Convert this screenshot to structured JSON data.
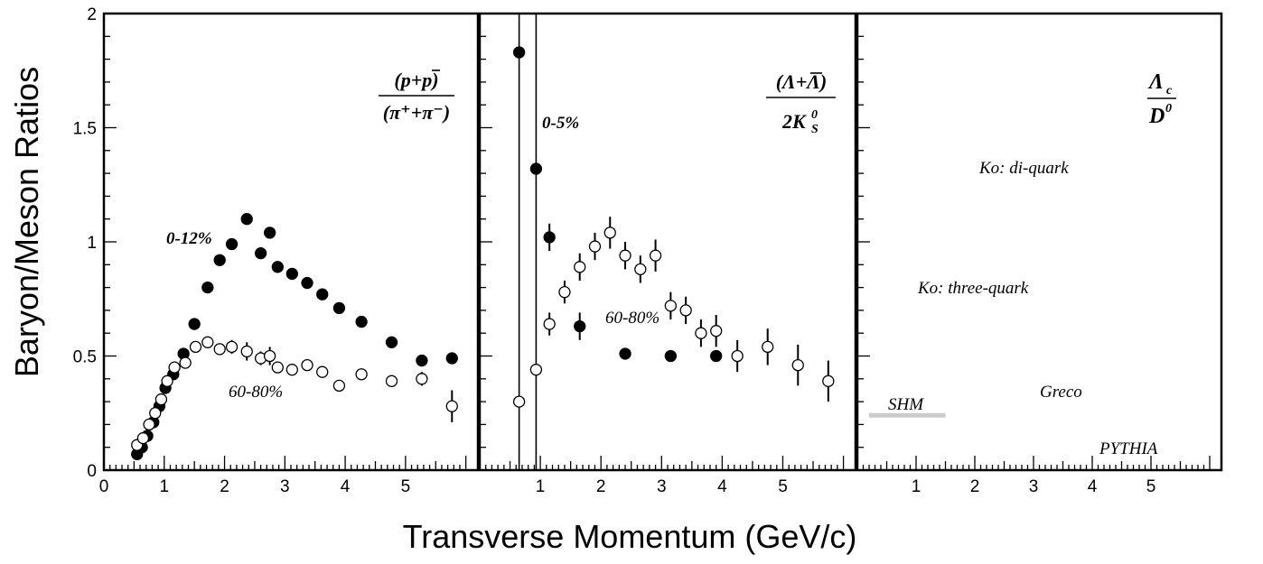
{
  "chart_data": {
    "type": "scatter",
    "ylabel": "Baryon/Meson Ratios",
    "xlabel": "Transverse Momentum (GeV/c)",
    "ylim": [
      0,
      2
    ],
    "y_ticks": [
      "0",
      "0.5",
      "1",
      "1.5",
      "2"
    ],
    "grid": false,
    "panels": [
      {
        "id": "p-over-pi",
        "xlim": [
          0,
          6.2
        ],
        "x_ticks": [
          "0",
          "1",
          "2",
          "3",
          "4",
          "5"
        ],
        "tick_values": [
          0,
          1,
          2,
          3,
          4,
          5
        ],
        "ratio_label": {
          "num": "(p+p)",
          "den": "(π⁺+π⁻)"
        },
        "annotations": [
          "0-12%",
          "60-80%"
        ],
        "series": [
          {
            "centrality": "0-12%",
            "marker": "filled-circle",
            "points": [
              [
                0.55,
                0.07
              ],
              [
                0.63,
                0.1
              ],
              [
                0.72,
                0.15
              ],
              [
                0.82,
                0.21
              ],
              [
                0.92,
                0.28
              ],
              [
                1.02,
                0.36
              ],
              [
                1.15,
                0.42
              ],
              [
                1.32,
                0.51
              ],
              [
                1.5,
                0.64
              ],
              [
                1.72,
                0.8
              ],
              [
                1.92,
                0.92
              ],
              [
                2.12,
                0.99
              ],
              [
                2.37,
                1.1
              ],
              [
                2.6,
                0.95
              ],
              [
                2.75,
                1.04
              ],
              [
                2.88,
                0.89
              ],
              [
                3.12,
                0.86
              ],
              [
                3.37,
                0.82
              ],
              [
                3.62,
                0.77
              ],
              [
                3.9,
                0.71
              ],
              [
                4.27,
                0.65
              ],
              [
                4.77,
                0.56
              ],
              [
                5.27,
                0.48
              ],
              [
                5.77,
                0.49
              ]
            ],
            "err": [
              0,
              0,
              0,
              0,
              0,
              0,
              0,
              0,
              0,
              0,
              0,
              0,
              0,
              0,
              0,
              0,
              0,
              0,
              0,
              0,
              0,
              0,
              0,
              0
            ]
          },
          {
            "centrality": "60-80%",
            "marker": "open-circle",
            "points": [
              [
                0.55,
                0.11
              ],
              [
                0.65,
                0.14
              ],
              [
                0.75,
                0.2
              ],
              [
                0.85,
                0.25
              ],
              [
                0.95,
                0.31
              ],
              [
                1.05,
                0.39
              ],
              [
                1.17,
                0.45
              ],
              [
                1.35,
                0.47
              ],
              [
                1.52,
                0.54
              ],
              [
                1.72,
                0.56
              ],
              [
                1.92,
                0.53
              ],
              [
                2.12,
                0.54
              ],
              [
                2.37,
                0.52
              ],
              [
                2.6,
                0.49
              ],
              [
                2.75,
                0.5
              ],
              [
                2.88,
                0.45
              ],
              [
                3.12,
                0.44
              ],
              [
                3.37,
                0.46
              ],
              [
                3.62,
                0.43
              ],
              [
                3.9,
                0.37
              ],
              [
                4.27,
                0.42
              ],
              [
                4.77,
                0.39
              ],
              [
                5.27,
                0.4
              ],
              [
                5.77,
                0.28
              ]
            ],
            "err": [
              0,
              0,
              0,
              0,
              0,
              0,
              0,
              0,
              0,
              0,
              0,
              0.03,
              0.04,
              0.03,
              0.04,
              0,
              0,
              0,
              0,
              0,
              0,
              0,
              0.03,
              0.07
            ]
          }
        ]
      },
      {
        "id": "lambda-over-k0s",
        "xlim": [
          0,
          6.2
        ],
        "x_ticks": [
          "1",
          "2",
          "3",
          "4",
          "5"
        ],
        "tick_values": [
          1,
          2,
          3,
          4,
          5
        ],
        "ratio_label": {
          "num": "(Λ+Λ)",
          "den": "2K"
        },
        "annotations": [
          "0-5%",
          "60-80%"
        ],
        "vertical_lines": [
          0.65,
          0.93
        ],
        "series": [
          {
            "centrality": "0-5%",
            "marker": "filled-circle",
            "points": [
              [
                0.65,
                1.83
              ],
              [
                0.93,
                1.32
              ],
              [
                1.15,
                1.02
              ],
              [
                1.65,
                0.63
              ],
              [
                2.4,
                0.51
              ],
              [
                3.15,
                0.5
              ],
              [
                3.9,
                0.5
              ]
            ],
            "err": [
              0,
              0,
              0.06,
              0.06,
              0,
              0,
              0
            ]
          },
          {
            "centrality": "60-80%",
            "marker": "open-circle",
            "points": [
              [
                0.65,
                0.3
              ],
              [
                0.93,
                0.44
              ],
              [
                1.15,
                0.64
              ],
              [
                1.4,
                0.78
              ],
              [
                1.65,
                0.89
              ],
              [
                1.9,
                0.98
              ],
              [
                2.15,
                1.04
              ],
              [
                2.4,
                0.94
              ],
              [
                2.65,
                0.88
              ],
              [
                2.9,
                0.94
              ],
              [
                3.15,
                0.72
              ],
              [
                3.4,
                0.7
              ],
              [
                3.65,
                0.6
              ],
              [
                3.9,
                0.61
              ],
              [
                4.25,
                0.5
              ],
              [
                4.75,
                0.54
              ],
              [
                5.25,
                0.46
              ],
              [
                5.75,
                0.39
              ]
            ],
            "err": [
              0,
              0,
              0.05,
              0.05,
              0.06,
              0.06,
              0.07,
              0.06,
              0.06,
              0.07,
              0.06,
              0.06,
              0.06,
              0.07,
              0.07,
              0.08,
              0.09,
              0.09
            ]
          }
        ]
      },
      {
        "id": "lambdac-over-d0",
        "xlim": [
          0,
          6.2
        ],
        "x_ticks": [
          "1",
          "2",
          "3",
          "4",
          "5"
        ],
        "tick_values": [
          1,
          2,
          3,
          4,
          5
        ],
        "ratio_label": {
          "num": "Λ",
          "den": "D"
        },
        "annotations": [
          "Ko: di-quark",
          "Ko: three-quark",
          "Greco",
          "SHM",
          "PYTHIA"
        ],
        "model_lines": [
          {
            "name": "SHM",
            "x": [
              0.2,
              1.5
            ],
            "y": 0.24,
            "color": "#cccccc"
          }
        ],
        "series": []
      }
    ]
  },
  "labels": {
    "p1_centrality_central": "0-12%",
    "p1_centrality_peripheral": "60-80%",
    "p2_centrality_central": "0-5%",
    "p2_centrality_peripheral": "60-80%",
    "ko_diquark": "Ko: di-quark",
    "ko_threequark": "Ko: three-quark",
    "greco": "Greco",
    "shm": "SHM",
    "pythia": "PYTHIA",
    "p1_ratio_num": "(p+p)",
    "p1_ratio_den": "(π⁺+π⁻)",
    "p2_ratio_num": "(Λ+Λ)",
    "p2_ratio_den": "2K",
    "p2_ratio_den_sup": "0",
    "p2_ratio_den_sub": "S",
    "p3_ratio_num": "Λ",
    "p3_ratio_num_sub": "c",
    "p3_ratio_den": "D",
    "p3_ratio_den_sup": "0"
  }
}
